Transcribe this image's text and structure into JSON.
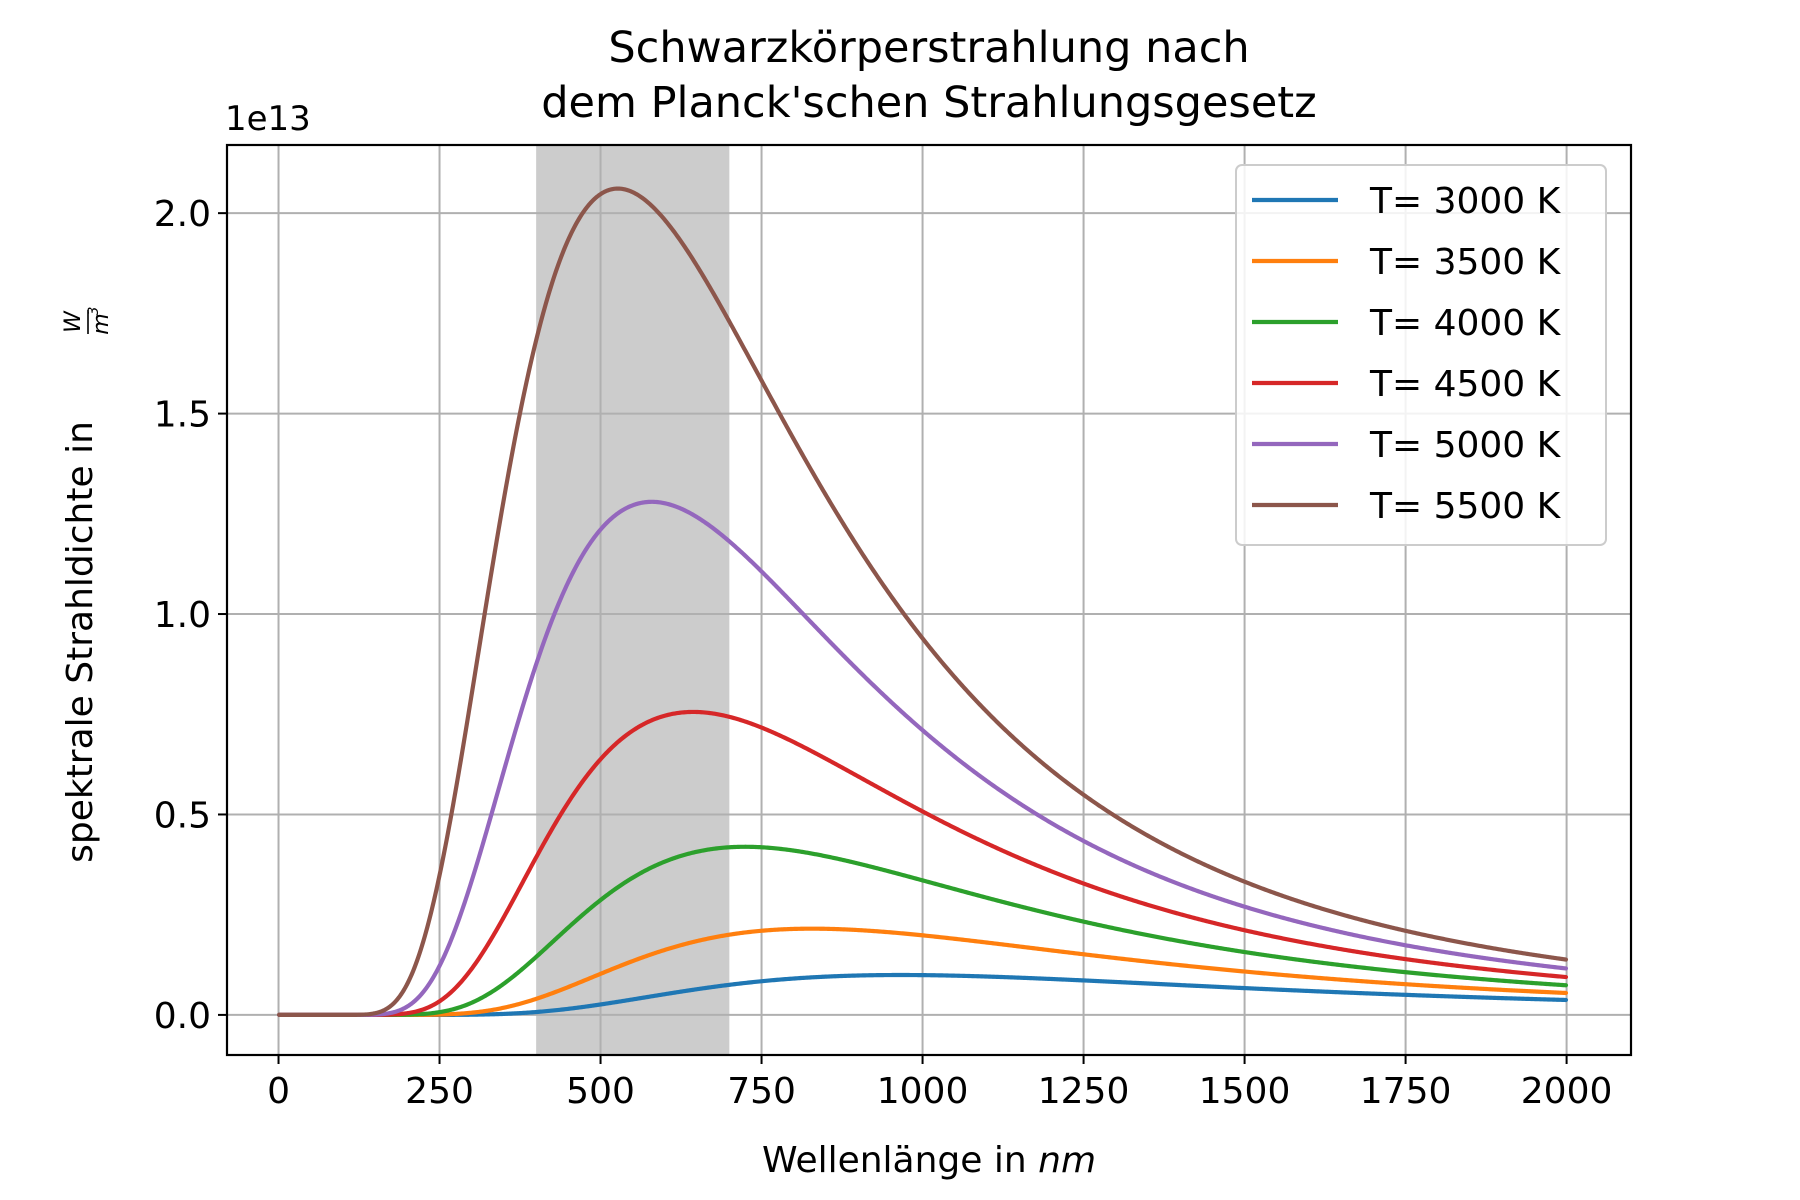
{
  "chart_data": {
    "type": "line",
    "title_lines": [
      "Schwarzkörperstrahlung nach",
      "dem Planck'schen Strahlungsgesetz"
    ],
    "xlabel_main": "Wellenlänge in ",
    "xlabel_unit": "nm",
    "ylabel_main": "spektrale Strahldichte in ",
    "ylabel_unit_num": "W",
    "ylabel_unit_den": "m",
    "ylabel_unit_exp": "3",
    "y_offset_label": "1e13",
    "y_scale": 10000000000000.0,
    "xlim": [
      -80,
      2100
    ],
    "ylim": [
      -0.1,
      2.17
    ],
    "x_ticks": [
      0,
      250,
      500,
      750,
      1000,
      1250,
      1500,
      1750,
      2000
    ],
    "x_tick_labels": [
      "0",
      "250",
      "500",
      "750",
      "1000",
      "1250",
      "1500",
      "1750",
      "2000"
    ],
    "y_ticks": [
      0.0,
      0.5,
      1.0,
      1.5,
      2.0
    ],
    "y_tick_labels": [
      "0.0",
      "0.5",
      "1.0",
      "1.5",
      "2.0"
    ],
    "grid": true,
    "legend_position": "top-right",
    "shaded_band": {
      "x_range": [
        400,
        700
      ],
      "color": "#cccccc"
    },
    "x_range_nm": [
      1,
      2000
    ],
    "series": [
      {
        "name": "T= 3000 K",
        "temperature_K": 3000,
        "color": "#1f77b4"
      },
      {
        "name": "T= 3500 K",
        "temperature_K": 3500,
        "color": "#ff7f0e"
      },
      {
        "name": "T= 4000 K",
        "temperature_K": 4000,
        "color": "#2ca02c"
      },
      {
        "name": "T= 4500 K",
        "temperature_K": 4500,
        "color": "#d62728"
      },
      {
        "name": "T= 5000 K",
        "temperature_K": 5000,
        "color": "#9467bd"
      },
      {
        "name": "T= 5500 K",
        "temperature_K": 5500,
        "color": "#8c564b"
      }
    ]
  }
}
